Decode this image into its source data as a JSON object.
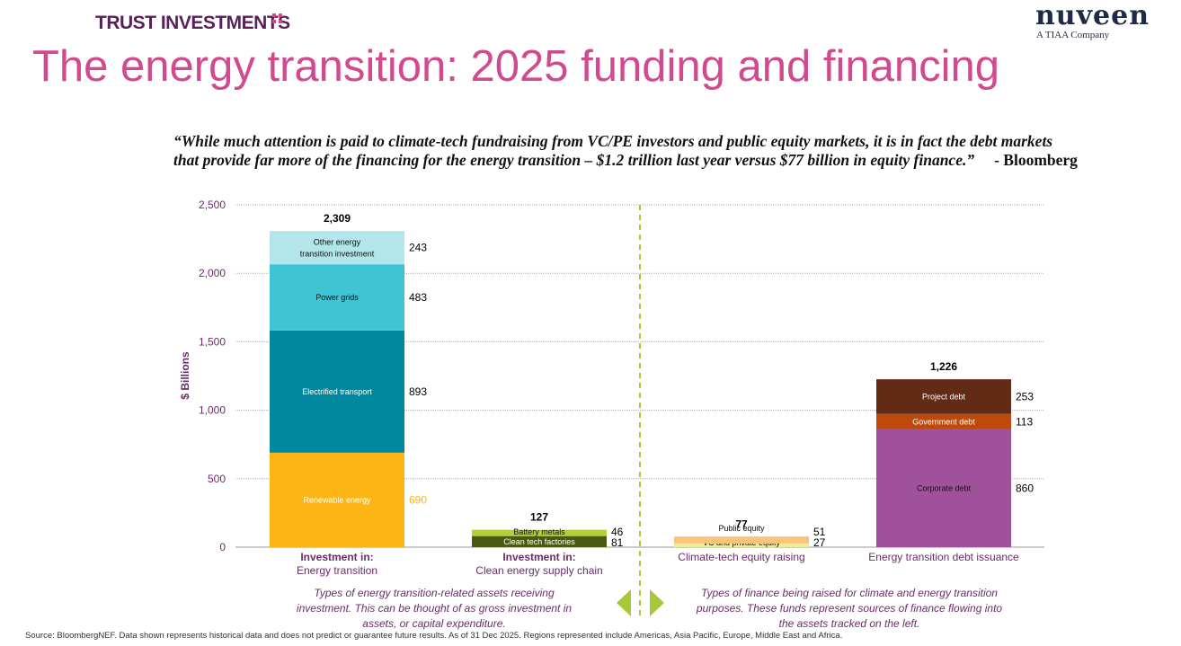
{
  "header": {
    "brand": "TRUST INVESTMENTS",
    "logo": "nuveen",
    "logo_sub": "A TIAA Company",
    "title": "The energy transition: 2025 funding and financing"
  },
  "quote": {
    "text": "“While much attention is paid to climate-tech fundraising from VC/PE investors and public equity markets, it is in fact the debt markets that provide far more of the financing for the energy transition – $1.2 trillion last year versus $77 billion in equity finance.”",
    "attribution": "- Bloomberg"
  },
  "chart_data": {
    "type": "bar",
    "stacked": true,
    "ylabel": "$ Billions",
    "ylim": [
      0,
      2500
    ],
    "yticks": [
      0,
      500,
      1000,
      1500,
      2000,
      2500
    ],
    "ytick_labels": [
      "0",
      "500",
      "1,000",
      "1,500",
      "2,000",
      "2,500"
    ],
    "grid": true,
    "groups": [
      {
        "label_prefix": "Investment in:",
        "label": "Energy transition",
        "total": 2309,
        "total_label": "2,309",
        "segments": [
          {
            "name": "Renewable energy",
            "value": 690,
            "value_label": "690",
            "color": "#fbb615",
            "text_color": "#ffffff",
            "value_color": "#fbb615"
          },
          {
            "name": "Electrified transport",
            "value": 893,
            "value_label": "893",
            "color": "#00889e",
            "text_color": "#ffffff",
            "value_color": "#000000"
          },
          {
            "name": "Power grids",
            "value": 483,
            "value_label": "483",
            "color": "#40c4d4",
            "text_color": "#111111",
            "value_color": "#000000"
          },
          {
            "name": "Other energy transition investment",
            "value": 243,
            "value_label": "243",
            "color": "#b2e6ea",
            "text_color": "#111111",
            "value_color": "#000000"
          }
        ]
      },
      {
        "label_prefix": "Investment in:",
        "label": "Clean energy supply chain",
        "total": 127,
        "total_label": "127",
        "segments": [
          {
            "name": "Clean tech factories",
            "value": 81,
            "value_label": "81",
            "color": "#4a5a12",
            "text_color": "#ffffff",
            "value_color": "#000000"
          },
          {
            "name": "Battery metals",
            "value": 46,
            "value_label": "46",
            "color": "#b3cf3a",
            "text_color": "#111111",
            "value_color": "#000000"
          }
        ]
      },
      {
        "label_prefix": "",
        "label": "Climate-tech equity raising",
        "total": 77,
        "total_label": "77",
        "segments": [
          {
            "name": "VC and private equity",
            "value": 27,
            "value_label": "27",
            "color": "#e6ef9a",
            "text_color": "#111111",
            "value_color": "#000000"
          },
          {
            "name": "Public equity",
            "value": 51,
            "value_label": "51",
            "color": "#fcc47a",
            "text_color": "#111111",
            "value_color": "#000000"
          }
        ]
      },
      {
        "label_prefix": "",
        "label": "Energy transition debt issuance",
        "total": 1226,
        "total_label": "1,226",
        "segments": [
          {
            "name": "Corporate debt",
            "value": 860,
            "value_label": "860",
            "color": "#a0519c",
            "text_color": "#111111",
            "value_color": "#000000"
          },
          {
            "name": "Government debt",
            "value": 113,
            "value_label": "113",
            "color": "#bd4a0a",
            "text_color": "#ffffff",
            "value_color": "#000000"
          },
          {
            "name": "Project debt",
            "value": 253,
            "value_label": "253",
            "color": "#632a16",
            "text_color": "#ffffff",
            "value_color": "#000000"
          }
        ]
      }
    ]
  },
  "notes": {
    "left": "Types of energy transition-related assets receiving investment. This can be thought of as gross investment in assets, or capital expenditure.",
    "right": "Types of finance being raised for climate and energy transition purposes. These funds represent sources of finance flowing into the assets tracked on the left."
  },
  "colors": {
    "accent": "#d14a8e",
    "axis_text": "#6b2c6a",
    "divider": "#a8c83a",
    "brand": "#5b1f5a"
  },
  "source": "Source: BloombergNEF. Data shown represents historical data and does not predict or guarantee future results. As of 31 Dec 2025. Regions represented include Americas, Asia Pacific, Europe, Middle East and Africa."
}
